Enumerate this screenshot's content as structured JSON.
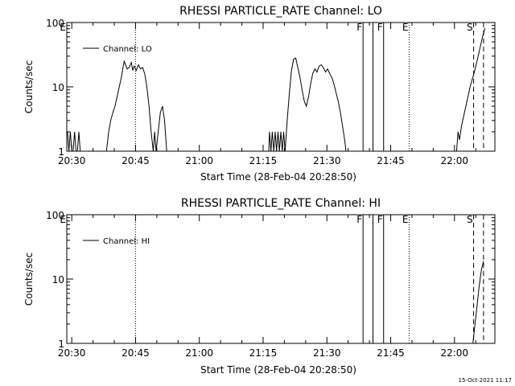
{
  "footer_timestamp": "15-Oct-2021 11:17",
  "chart_data": [
    {
      "type": "line",
      "title": "RHESSI PARTICLE_RATE Channel: LO",
      "xlabel": "Start Time (28-Feb-04 20:28:50)",
      "ylabel": "Counts/sec",
      "x_unit": "clock time (HH:MM) on 28-Feb-04",
      "xlim": [
        "20:28:50",
        "22:09:30"
      ],
      "ylim": [
        1,
        100
      ],
      "yscale": "log",
      "x_ticks": [
        "20:30",
        "20:45",
        "21:00",
        "21:15",
        "21:30",
        "21:45",
        "22:00"
      ],
      "y_ticks": [
        "1",
        "10",
        "100"
      ],
      "legend": {
        "position": "top-left",
        "entries": [
          "Channel: LO"
        ]
      },
      "series": [
        {
          "name": "Channel: LO",
          "points": [
            [
              "20:29:00",
              2
            ],
            [
              "20:29:20",
              1
            ],
            [
              "20:29:40",
              2
            ],
            [
              "20:30:00",
              1
            ],
            [
              "20:30:20",
              1
            ],
            [
              "20:30:40",
              2
            ],
            [
              "20:31:00",
              1
            ],
            [
              "20:31:20",
              1
            ],
            [
              "20:31:40",
              2
            ],
            [
              "20:32:00",
              1
            ],
            [
              "20:38:10",
              1
            ],
            [
              "20:38:40",
              2
            ],
            [
              "20:39:10",
              3
            ],
            [
              "20:39:40",
              4
            ],
            [
              "20:40:10",
              5
            ],
            [
              "20:40:40",
              7
            ],
            [
              "20:41:10",
              10
            ],
            [
              "20:41:40",
              14
            ],
            [
              "20:42:00",
              19
            ],
            [
              "20:42:20",
              25
            ],
            [
              "20:42:40",
              22
            ],
            [
              "20:43:00",
              19
            ],
            [
              "20:43:30",
              20
            ],
            [
              "20:44:00",
              24
            ],
            [
              "20:44:20",
              18
            ],
            [
              "20:44:40",
              21
            ],
            [
              "20:45:10",
              18
            ],
            [
              "20:45:40",
              22
            ],
            [
              "20:46:10",
              19
            ],
            [
              "20:46:40",
              20
            ],
            [
              "20:47:10",
              16
            ],
            [
              "20:47:40",
              10
            ],
            [
              "20:48:10",
              5
            ],
            [
              "20:48:40",
              2
            ],
            [
              "20:49:10",
              1
            ],
            [
              "20:49:30",
              2
            ],
            [
              "20:49:50",
              1
            ],
            [
              "20:50:20",
              2
            ],
            [
              "20:50:50",
              4
            ],
            [
              "20:51:20",
              5
            ],
            [
              "20:51:50",
              3
            ],
            [
              "20:52:20",
              1
            ],
            [
              "21:16:20",
              1
            ],
            [
              "21:16:30",
              2
            ],
            [
              "21:16:50",
              1
            ],
            [
              "21:17:10",
              2
            ],
            [
              "21:17:30",
              1
            ],
            [
              "21:17:50",
              2
            ],
            [
              "21:18:10",
              1
            ],
            [
              "21:18:30",
              2
            ],
            [
              "21:18:50",
              1
            ],
            [
              "21:19:10",
              2
            ],
            [
              "21:19:30",
              1
            ],
            [
              "21:19:50",
              2
            ],
            [
              "21:20:10",
              1
            ],
            [
              "21:20:40",
              3
            ],
            [
              "21:21:10",
              8
            ],
            [
              "21:21:40",
              18
            ],
            [
              "21:22:10",
              27
            ],
            [
              "21:22:40",
              28
            ],
            [
              "21:23:10",
              20
            ],
            [
              "21:23:40",
              14
            ],
            [
              "21:24:10",
              9
            ],
            [
              "21:24:40",
              6
            ],
            [
              "21:25:10",
              5
            ],
            [
              "21:25:40",
              7
            ],
            [
              "21:26:10",
              11
            ],
            [
              "21:26:40",
              16
            ],
            [
              "21:27:10",
              19
            ],
            [
              "21:27:40",
              17
            ],
            [
              "21:28:10",
              21
            ],
            [
              "21:28:40",
              22
            ],
            [
              "21:29:10",
              20
            ],
            [
              "21:29:40",
              17
            ],
            [
              "21:30:10",
              19
            ],
            [
              "21:30:40",
              16
            ],
            [
              "21:31:10",
              14
            ],
            [
              "21:31:40",
              11
            ],
            [
              "21:32:10",
              8
            ],
            [
              "21:32:40",
              6
            ],
            [
              "21:33:10",
              4
            ],
            [
              "21:33:40",
              2.5
            ],
            [
              "21:34:10",
              1.5
            ],
            [
              "21:34:30",
              1
            ],
            [
              "22:00:30",
              1
            ],
            [
              "22:00:50",
              2
            ],
            [
              "22:01:10",
              1.5
            ],
            [
              "22:01:40",
              2.5
            ],
            [
              "22:02:10",
              3.5
            ],
            [
              "22:02:40",
              5
            ],
            [
              "22:03:10",
              7
            ],
            [
              "22:03:40",
              10
            ],
            [
              "22:04:10",
              13
            ],
            [
              "22:04:40",
              17
            ],
            [
              "22:05:10",
              23
            ],
            [
              "22:05:40",
              32
            ],
            [
              "22:06:10",
              45
            ],
            [
              "22:06:40",
              62
            ],
            [
              "22:07:10",
              82
            ]
          ]
        }
      ],
      "markers": [
        {
          "label": "E",
          "time": "20:28:50",
          "style": "dotted"
        },
        {
          "label": "",
          "time": "20:45:00",
          "style": "dotted"
        },
        {
          "label": "F",
          "time": "21:38:30",
          "style": "solid"
        },
        {
          "label": "",
          "time": "21:40:50",
          "style": "solid"
        },
        {
          "label": "F",
          "time": "21:43:20",
          "style": "solid"
        },
        {
          "label": "E",
          "time": "21:49:20",
          "style": "dotted"
        },
        {
          "label": "S",
          "time": "22:04:30",
          "style": "dashed"
        },
        {
          "label": "",
          "time": "22:06:50",
          "style": "dashed"
        }
      ]
    },
    {
      "type": "line",
      "title": "RHESSI PARTICLE_RATE Channel: HI",
      "xlabel": "Start Time (28-Feb-04 20:28:50)",
      "ylabel": "Counts/sec",
      "x_unit": "clock time (HH:MM) on 28-Feb-04",
      "xlim": [
        "20:28:50",
        "22:09:30"
      ],
      "ylim": [
        1,
        100
      ],
      "yscale": "log",
      "x_ticks": [
        "20:30",
        "20:45",
        "21:00",
        "21:15",
        "21:30",
        "21:45",
        "22:00"
      ],
      "y_ticks": [
        "1",
        "10",
        "100"
      ],
      "legend": {
        "position": "top-left",
        "entries": [
          "Channel: HI"
        ]
      },
      "series": [
        {
          "name": "Channel: HI",
          "points": [
            [
              "22:04:20",
              1
            ],
            [
              "22:04:50",
              2
            ],
            [
              "22:05:20",
              4
            ],
            [
              "22:05:50",
              8
            ],
            [
              "22:06:20",
              14
            ],
            [
              "22:06:50",
              19
            ]
          ]
        }
      ],
      "markers": [
        {
          "label": "E",
          "time": "20:28:50",
          "style": "dotted"
        },
        {
          "label": "",
          "time": "20:45:00",
          "style": "dotted"
        },
        {
          "label": "F",
          "time": "21:38:30",
          "style": "solid"
        },
        {
          "label": "",
          "time": "21:40:50",
          "style": "solid"
        },
        {
          "label": "F",
          "time": "21:43:20",
          "style": "solid"
        },
        {
          "label": "E",
          "time": "21:49:20",
          "style": "dotted"
        },
        {
          "label": "S",
          "time": "22:04:30",
          "style": "dashed"
        },
        {
          "label": "",
          "time": "22:06:50",
          "style": "dashed"
        }
      ]
    }
  ]
}
